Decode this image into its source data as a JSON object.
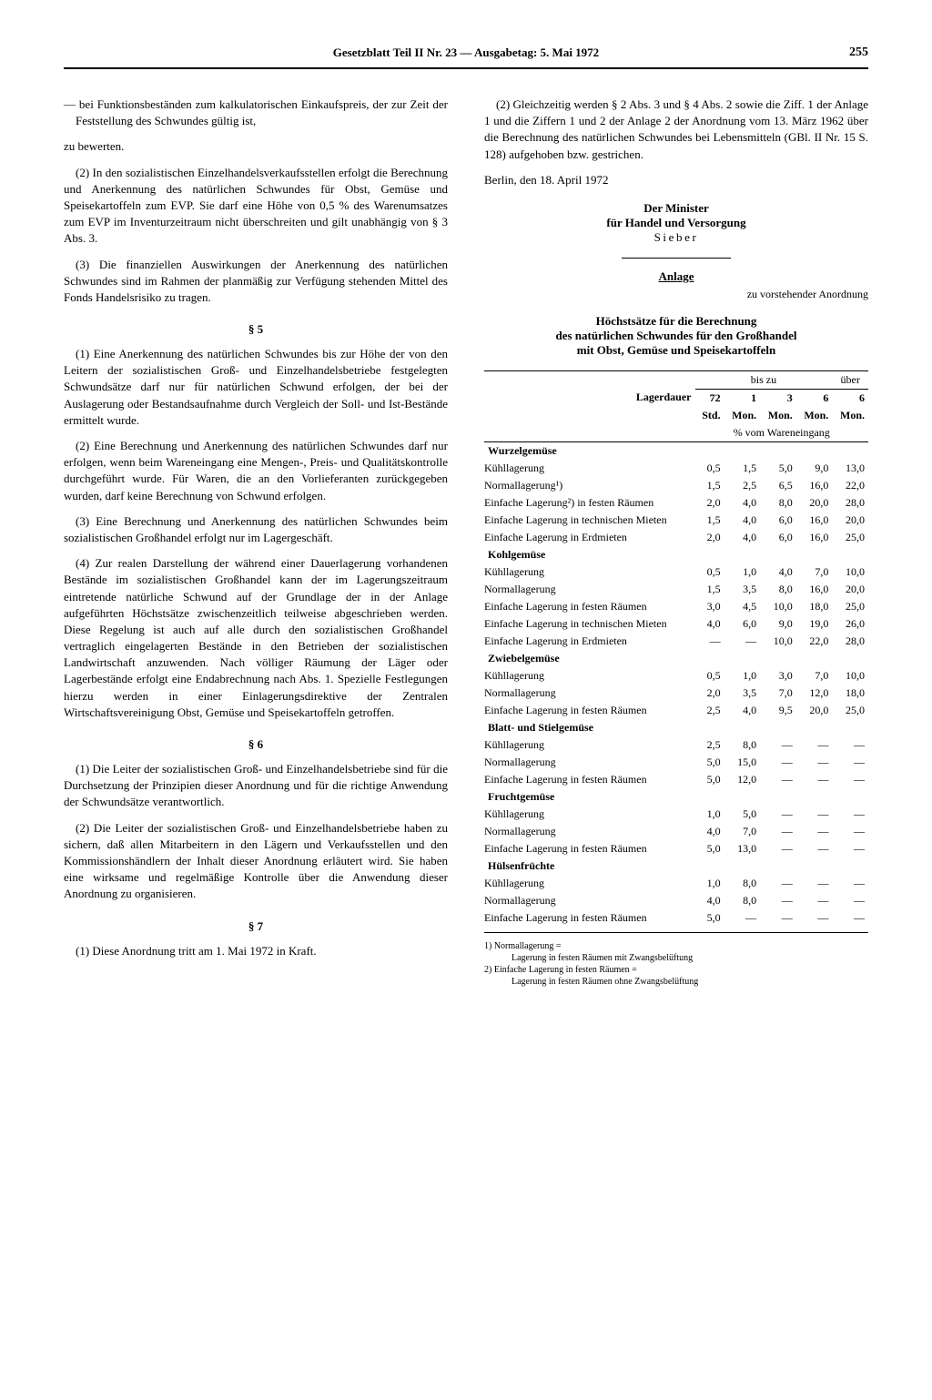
{
  "header": {
    "title": "Gesetzblatt Teil II Nr. 23 — Ausgabetag: 5. Mai 1972",
    "page": "255"
  },
  "left": {
    "p1": "— bei Funktionsbeständen zum kalkulatorischen Einkaufspreis, der zur Zeit der Feststellung des Schwundes gültig ist,",
    "p1b": "zu bewerten.",
    "p2": "(2) In den sozialistischen Einzelhandelsverkaufsstellen erfolgt die Berechnung und Anerkennung des natürlichen Schwundes für Obst, Gemüse und Speisekartoffeln zum EVP. Sie darf eine Höhe von 0,5 % des Warenumsatzes zum EVP im Inventurzeitraum nicht überschreiten und gilt unabhängig von § 3 Abs. 3.",
    "p3": "(3) Die finanziellen Auswirkungen der Anerkennung des natürlichen Schwundes sind im Rahmen der planmäßig zur Verfügung stehenden Mittel des Fonds Handelsrisiko zu tragen.",
    "s5": "§ 5",
    "p4": "(1) Eine Anerkennung des natürlichen Schwundes bis zur Höhe der von den Leitern der sozialistischen Groß- und Einzelhandelsbetriebe festgelegten Schwundsätze darf nur für natürlichen Schwund erfolgen, der bei der Auslagerung oder Bestandsaufnahme durch Vergleich der Soll- und Ist-Bestände ermittelt wurde.",
    "p5": "(2) Eine Berechnung und Anerkennung des natürlichen Schwundes darf nur erfolgen, wenn beim Wareneingang eine Mengen-, Preis- und Qualitätskontrolle durchgeführt wurde. Für Waren, die an den Vorlieferanten zurückgegeben wurden, darf keine Berechnung von Schwund erfolgen.",
    "p6": "(3) Eine Berechnung und Anerkennung des natürlichen Schwundes beim sozialistischen Großhandel erfolgt nur im Lagergeschäft.",
    "p7": "(4) Zur realen Darstellung der während einer Dauerlagerung vorhandenen Bestände im sozialistischen Großhandel kann der im Lagerungszeitraum eintretende natürliche Schwund auf der Grundlage der in der Anlage aufgeführten Höchstsätze zwischenzeitlich teilweise abgeschrieben werden. Diese Regelung ist auch auf alle durch den sozialistischen Großhandel vertraglich eingelagerten Bestände in den Betrieben der sozialistischen Landwirtschaft anzuwenden. Nach völliger Räumung der Läger oder Lagerbestände erfolgt eine Endabrechnung nach Abs. 1. Spezielle Festlegungen hierzu werden in einer Einlagerungsdirektive der Zentralen Wirtschaftsvereinigung Obst, Gemüse und Speisekartoffeln getroffen.",
    "s6": "§ 6",
    "p8": "(1) Die Leiter der sozialistischen Groß- und Einzelhandelsbetriebe sind für die Durchsetzung der Prinzipien dieser Anordnung und für die richtige Anwendung der Schwundsätze verantwortlich.",
    "p9": "(2) Die Leiter der sozialistischen Groß- und Einzelhandelsbetriebe haben zu sichern, daß allen Mitarbeitern in den Lägern und Verkaufsstellen und den Kommissionshändlern der Inhalt dieser Anordnung erläutert wird. Sie haben eine wirksame und regelmäßige Kontrolle über die Anwendung dieser Anordnung zu organisieren.",
    "s7": "§ 7",
    "p10": "(1) Diese Anordnung tritt am 1. Mai 1972 in Kraft."
  },
  "right": {
    "p1": "(2) Gleichzeitig werden § 2 Abs. 3 und § 4 Abs. 2 sowie die Ziff. 1 der Anlage 1 und die Ziffern 1 und 2 der Anlage 2 der Anordnung vom 13. März 1962 über die Berechnung des natürlichen Schwundes bei Lebensmitteln (GBl. II Nr. 15 S. 128) aufgehoben bzw. gestrichen.",
    "date": "Berlin, den 18. April 1972",
    "sig1": "Der Minister",
    "sig2": "für Handel und Versorgung",
    "sig3": "Sieber",
    "anlage": "Anlage",
    "anlage_sub": "zu vorstehender Anordnung",
    "anlage_head1": "Höchstsätze für die Berechnung",
    "anlage_head2": "des natürlichen Schwundes für den Großhandel",
    "anlage_head3": "mit Obst, Gemüse und Speisekartoffeln"
  },
  "table": {
    "lager_header": "Lagerdauer",
    "bis_zu": "bis zu",
    "ueber": "über",
    "c1": "72",
    "c1b": "Std.",
    "c2": "1",
    "c2b": "Mon.",
    "c3": "3",
    "c3b": "Mon.",
    "c4": "6",
    "c4b": "Mon.",
    "c5": "6",
    "c5b": "Mon.",
    "pct": "% vom Wareneingang",
    "sections": [
      {
        "name": "Wurzelgemüse",
        "rows": [
          [
            "Kühllagerung",
            "0,5",
            "1,5",
            "5,0",
            "9,0",
            "13,0"
          ],
          [
            "Normallagerung¹)",
            "1,5",
            "2,5",
            "6,5",
            "16,0",
            "22,0"
          ],
          [
            "Einfache Lagerung²) in festen Räumen",
            "2,0",
            "4,0",
            "8,0",
            "20,0",
            "28,0"
          ],
          [
            "Einfache Lagerung in technischen Mieten",
            "1,5",
            "4,0",
            "6,0",
            "16,0",
            "20,0"
          ],
          [
            "Einfache Lagerung in Erdmieten",
            "2,0",
            "4,0",
            "6,0",
            "16,0",
            "25,0"
          ]
        ]
      },
      {
        "name": "Kohlgemüse",
        "rows": [
          [
            "Kühllagerung",
            "0,5",
            "1,0",
            "4,0",
            "7,0",
            "10,0"
          ],
          [
            "Normallagerung",
            "1,5",
            "3,5",
            "8,0",
            "16,0",
            "20,0"
          ],
          [
            "Einfache Lagerung in festen Räumen",
            "3,0",
            "4,5",
            "10,0",
            "18,0",
            "25,0"
          ],
          [
            "Einfache Lagerung in technischen Mieten",
            "4,0",
            "6,0",
            "9,0",
            "19,0",
            "26,0"
          ],
          [
            "Einfache Lagerung in Erdmieten",
            "—",
            "—",
            "10,0",
            "22,0",
            "28,0"
          ]
        ]
      },
      {
        "name": "Zwiebelgemüse",
        "rows": [
          [
            "Kühllagerung",
            "0,5",
            "1,0",
            "3,0",
            "7,0",
            "10,0"
          ],
          [
            "Normallagerung",
            "2,0",
            "3,5",
            "7,0",
            "12,0",
            "18,0"
          ],
          [
            "Einfache Lagerung in festen Räumen",
            "2,5",
            "4,0",
            "9,5",
            "20,0",
            "25,0"
          ]
        ]
      },
      {
        "name": "Blatt- und Stielgemüse",
        "rows": [
          [
            "Kühllagerung",
            "2,5",
            "8,0",
            "—",
            "—",
            "—"
          ],
          [
            "Normallagerung",
            "5,0",
            "15,0",
            "—",
            "—",
            "—"
          ],
          [
            "Einfache Lagerung in festen Räumen",
            "5,0",
            "12,0",
            "—",
            "—",
            "—"
          ]
        ]
      },
      {
        "name": "Fruchtgemüse",
        "rows": [
          [
            "Kühllagerung",
            "1,0",
            "5,0",
            "—",
            "—",
            "—"
          ],
          [
            "Normallagerung",
            "4,0",
            "7,0",
            "—",
            "—",
            "—"
          ],
          [
            "Einfache Lagerung in festen Räumen",
            "5,0",
            "13,0",
            "—",
            "—",
            "—"
          ]
        ]
      },
      {
        "name": "Hülsenfrüchte",
        "rows": [
          [
            "Kühllagerung",
            "1,0",
            "8,0",
            "—",
            "—",
            "—"
          ],
          [
            "Normallagerung",
            "4,0",
            "8,0",
            "—",
            "—",
            "—"
          ],
          [
            "Einfache Lagerung in festen Räumen",
            "5,0",
            "—",
            "—",
            "—",
            "—"
          ]
        ]
      }
    ]
  },
  "footnotes": {
    "f1a": "1) Normallagerung =",
    "f1b": "Lagerung in festen Räumen mit Zwangsbelüftung",
    "f2a": "2) Einfache Lagerung in festen Räumen =",
    "f2b": "Lagerung in festen Räumen ohne Zwangsbelüftung"
  }
}
